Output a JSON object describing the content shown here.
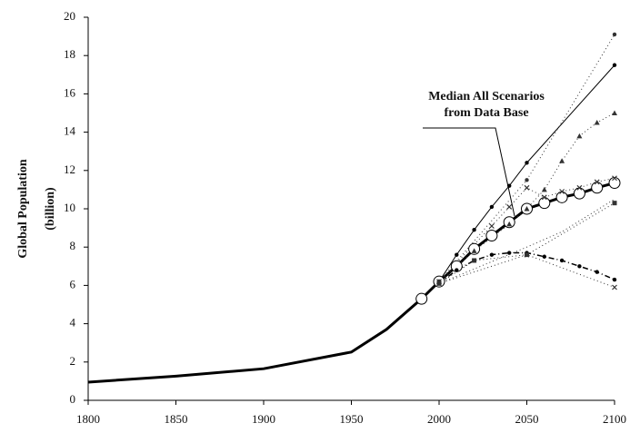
{
  "chart_data": {
    "type": "line",
    "ylabel": [
      "Global Population",
      "(billion)"
    ],
    "annotation": [
      "Median All Scenarios",
      "from Data Base"
    ],
    "xlim": [
      1800,
      2100
    ],
    "xticks": [
      1800,
      1850,
      1900,
      1950,
      2000,
      2050,
      2100
    ],
    "ylim": [
      0,
      20
    ],
    "yticks": [
      0,
      2,
      4,
      6,
      8,
      10,
      12,
      14,
      16,
      18,
      20
    ],
    "grid": false,
    "series": [
      {
        "color": "#000",
        "width": 3,
        "dash": "none",
        "marker": "none",
        "x": [
          1800,
          1850,
          1900,
          1950,
          1970,
          1990
        ],
        "values": [
          0.95,
          1.26,
          1.65,
          2.52,
          3.7,
          5.3
        ]
      },
      {
        "color": "#000",
        "width": 3,
        "dash": "none",
        "marker": "circle",
        "x": [
          1990,
          2000,
          2010,
          2020,
          2030,
          2040,
          2050,
          2060,
          2070,
          2080,
          2090,
          2100
        ],
        "values": [
          5.3,
          6.2,
          7.0,
          7.9,
          8.6,
          9.3,
          10.0,
          10.3,
          10.6,
          10.8,
          11.1,
          11.35
        ]
      },
      {
        "color": "#000",
        "width": 1,
        "dash": "none",
        "marker": "dot",
        "x": [
          2000,
          2010,
          2020,
          2030,
          2040,
          2050,
          2100
        ],
        "values": [
          6.2,
          7.6,
          8.9,
          10.1,
          11.2,
          12.4,
          17.5
        ]
      },
      {
        "color": "#333",
        "width": 1,
        "dash": "1 3",
        "marker": "dot",
        "x": [
          2000,
          2050,
          2100
        ],
        "values": [
          6.2,
          11.5,
          19.1
        ]
      },
      {
        "color": "#333",
        "width": 1,
        "dash": "1 3",
        "marker": "triangle",
        "x": [
          2000,
          2020,
          2040,
          2050,
          2060,
          2070,
          2080,
          2090,
          2100
        ],
        "values": [
          6.2,
          7.8,
          9.2,
          10.0,
          11.0,
          12.5,
          13.8,
          14.5,
          15.0
        ]
      },
      {
        "color": "#333",
        "width": 1,
        "dash": "1 3",
        "marker": "star",
        "x": [
          2000,
          2030,
          2040,
          2050,
          2060,
          2070,
          2080,
          2090,
          2100
        ],
        "values": [
          6.2,
          9.1,
          10.1,
          11.1,
          10.6,
          10.9,
          11.1,
          11.4,
          11.6
        ]
      },
      {
        "color": "#000",
        "width": 1.5,
        "dash": "6 3 1 3",
        "marker": "dot",
        "x": [
          2000,
          2010,
          2020,
          2030,
          2040,
          2050,
          2060,
          2070,
          2080,
          2090,
          2100
        ],
        "values": [
          6.1,
          6.8,
          7.3,
          7.6,
          7.7,
          7.7,
          7.5,
          7.3,
          7.0,
          6.7,
          6.3
        ]
      },
      {
        "color": "#333",
        "width": 1,
        "dash": "1 3",
        "marker": "square",
        "x": [
          2000,
          2020,
          2050,
          2100
        ],
        "values": [
          6.1,
          7.3,
          7.6,
          10.3
        ]
      },
      {
        "color": "#333",
        "width": 1,
        "dash": "1 3",
        "marker": "star",
        "x": [
          2000,
          2050,
          2100
        ],
        "values": [
          6.1,
          7.6,
          5.9
        ]
      },
      {
        "color": "#333",
        "width": 1,
        "dash": "1 3",
        "marker": "none",
        "x": [
          2000,
          2050,
          2070,
          2100
        ],
        "values": [
          6.1,
          8.0,
          8.8,
          10.5
        ]
      }
    ]
  }
}
